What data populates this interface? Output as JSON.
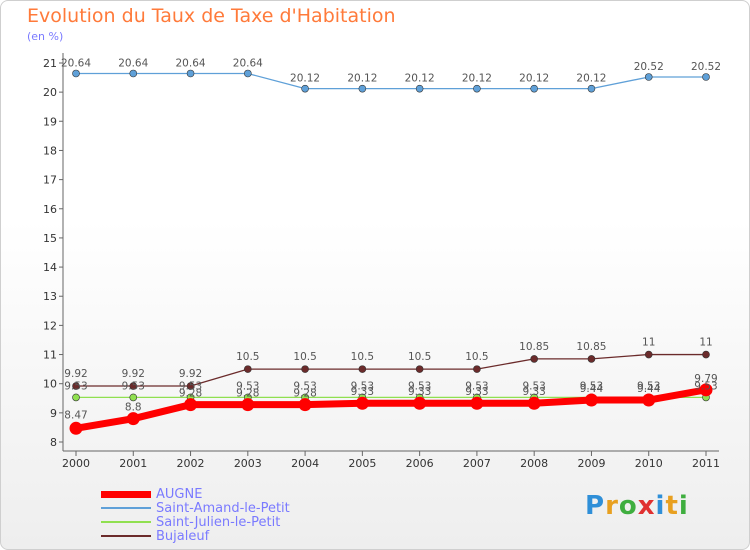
{
  "header": {
    "title": "Evolution du Taux de Taxe d'Habitation",
    "unit": "(en %)"
  },
  "logo": {
    "letters": [
      "P",
      "r",
      "o",
      "x",
      "i",
      "t",
      "i"
    ],
    "colors": [
      "#2f8fd8",
      "#e8a020",
      "#3fae3f",
      "#e03030",
      "#2f8fd8",
      "#e8a020",
      "#3fae3f"
    ]
  },
  "chart_data": {
    "type": "line",
    "title": "Evolution du Taux de Taxe d'Habitation",
    "ylabel": "(en %)",
    "x": [
      "2000",
      "2001",
      "2002",
      "2003",
      "2004",
      "2005",
      "2006",
      "2007",
      "2008",
      "2009",
      "2010",
      "2011"
    ],
    "ylim": [
      8,
      21
    ],
    "yticks": [
      8,
      9,
      10,
      11,
      12,
      13,
      14,
      15,
      16,
      17,
      18,
      19,
      20,
      21
    ],
    "grid": false,
    "legend": "bottom-left",
    "series": [
      {
        "name": "Saint-Amand-le-Petit",
        "color": "#5fa0d8",
        "values": [
          20.64,
          20.64,
          20.64,
          20.64,
          20.12,
          20.12,
          20.12,
          20.12,
          20.12,
          20.12,
          20.52,
          20.52
        ],
        "labels": [
          "20.64",
          "20.64",
          "20.64",
          "20.64",
          "20.12",
          "20.12",
          "20.12",
          "20.12",
          "20.12",
          "20.12",
          "20.52",
          "20.52"
        ]
      },
      {
        "name": "Bujaleuf",
        "color": "#6b2b2b",
        "values": [
          9.92,
          9.92,
          9.92,
          10.5,
          10.5,
          10.5,
          10.5,
          10.5,
          10.85,
          10.85,
          11,
          11
        ],
        "labels": [
          "9.92",
          "9.92",
          "9.92",
          "10.5",
          "10.5",
          "10.5",
          "10.5",
          "10.5",
          "10.85",
          "10.85",
          "11",
          "11"
        ]
      },
      {
        "name": "Saint-Julien-le-Petit",
        "color": "#90e050",
        "values": [
          9.53,
          9.53,
          9.53,
          9.53,
          9.53,
          9.53,
          9.53,
          9.53,
          9.53,
          9.53,
          9.53,
          9.53
        ],
        "labels": [
          "9.53",
          "9.53",
          "9.53",
          "9.53",
          "9.53",
          "9.53",
          "9.53",
          "9.53",
          "9.53",
          "9.53",
          "9.53",
          "9.53"
        ]
      },
      {
        "name": "AUGNE",
        "color": "#ff0000",
        "values": [
          8.47,
          8.8,
          9.28,
          9.28,
          9.28,
          9.33,
          9.33,
          9.33,
          9.33,
          9.44,
          9.44,
          9.79
        ],
        "labels": [
          "8.47",
          "8.8",
          "9.28",
          "9.28",
          "9.28",
          "9.33",
          "9.33",
          "9.33",
          "9.33",
          "9.44",
          "9.44",
          "9.79"
        ]
      }
    ],
    "legend_order": [
      "AUGNE",
      "Saint-Amand-le-Petit",
      "Saint-Julien-le-Petit",
      "Bujaleuf"
    ]
  }
}
